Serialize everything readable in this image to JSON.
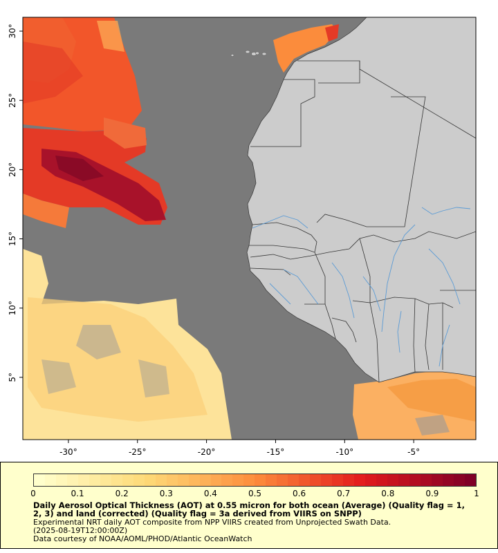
{
  "map": {
    "lon_min": -33.3,
    "lon_max": -0.5,
    "lat_min": 0.5,
    "lat_max": 31,
    "x_ticks": [
      {
        "value": -30,
        "label": "-30°"
      },
      {
        "value": -25,
        "label": "-25°"
      },
      {
        "value": -20,
        "label": "-20°"
      },
      {
        "value": -15,
        "label": "-15°"
      },
      {
        "value": -10,
        "label": "-10°"
      },
      {
        "value": -5,
        "label": "-5°"
      }
    ],
    "y_ticks": [
      {
        "value": 5,
        "label": "5°"
      },
      {
        "value": 10,
        "label": "10°"
      },
      {
        "value": 15,
        "label": "15°"
      },
      {
        "value": 20,
        "label": "20°"
      },
      {
        "value": 25,
        "label": "25°"
      },
      {
        "value": 30,
        "label": "30°"
      }
    ],
    "colors": {
      "ocean_nodata": "#7a7a7a",
      "land": "#cccccc",
      "borders": "#333333",
      "rivers": "#5b9bd5"
    }
  },
  "legend": {
    "scale_min": 0,
    "scale_max": 1,
    "scale_labels": [
      "0",
      "0.1",
      "0.2",
      "0.3",
      "0.4",
      "0.5",
      "0.6",
      "0.7",
      "0.8",
      "0.9",
      "1"
    ],
    "title": "Daily Aerosol Optical Thickness (AOT) at 0.55 micron for both ocean (Average) (Quality flag = 1, 2, 3) and land (corrected) (Quality flag = 3a derived from VIIRS on SNPP)",
    "line1": "Experimental NRT daily AOT composite from NPP VIIRS created from Unprojected Swath Data.",
    "line2": "(2025-08-19T12:00:00Z)",
    "line3": "Data courtesy of NOAA/AOML/PHOD/Atlantic OceanWatch"
  }
}
